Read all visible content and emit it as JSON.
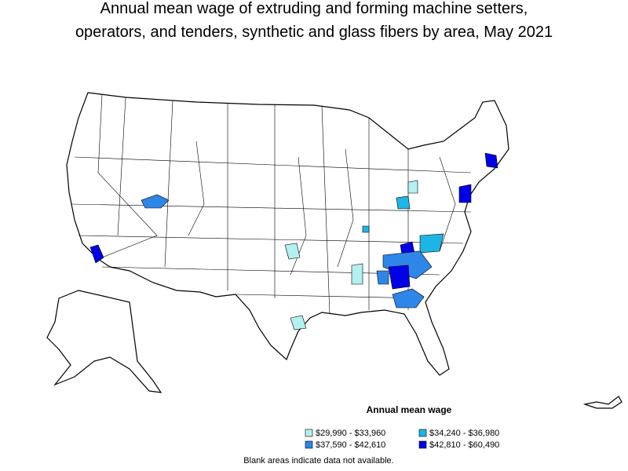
{
  "header": {
    "title_lines": [
      "Annual mean wage of extruding and forming machine setters,",
      "operators, and tenders, synthetic and glass fibers by area, May 2021"
    ]
  },
  "legend": {
    "title": "Annual mean wage",
    "items": [
      {
        "label": "$29,990 - $33,960",
        "color": "#b3f0f0"
      },
      {
        "label": "$34,240 - $36,980",
        "color": "#1eb4e6"
      },
      {
        "label": "$37,590 - $42,610",
        "color": "#2e86e8"
      },
      {
        "label": "$42,810 - $60,490",
        "color": "#0000e6"
      }
    ]
  },
  "footnote": "Blank areas indicate data not available."
}
